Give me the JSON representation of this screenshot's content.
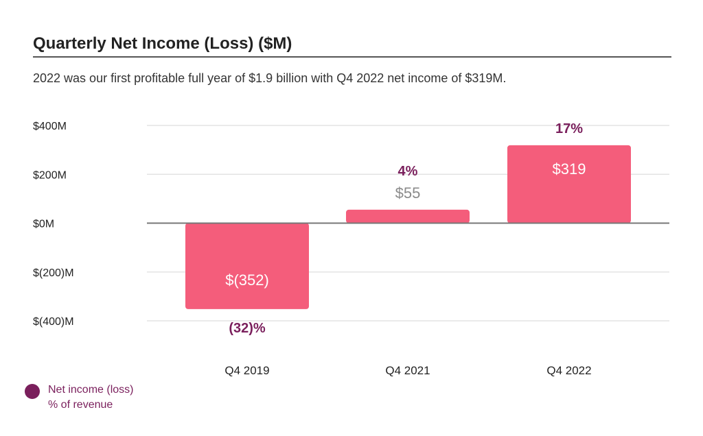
{
  "header": {
    "title": "Quarterly Net Income (Loss) ($M)",
    "subtitle": "2022 was our first profitable full year of $1.9 billion with Q4 2022 net income of $319M."
  },
  "legend": {
    "line1": "Net income (loss)",
    "line2": "% of revenue"
  },
  "colors": {
    "bar": "#f45d7b",
    "accent": "#7a1f5c",
    "label_light": "#ffffff",
    "label_gray": "#8a8a8a",
    "grid": "#e3e3e3",
    "zero_line": "#777777",
    "tick": "#222222"
  },
  "chart_data": {
    "type": "bar",
    "title": "Quarterly Net Income (Loss) ($M)",
    "categories": [
      "Q4 2019",
      "Q4 2021",
      "Q4 2022"
    ],
    "values": [
      -352,
      55,
      319
    ],
    "value_labels": [
      "$(352)",
      "$55",
      "$319"
    ],
    "percent_labels": [
      "(32)%",
      "4%",
      "17%"
    ],
    "ylim": [
      -400,
      400
    ],
    "yticks": [
      400,
      200,
      0,
      -200,
      -400
    ],
    "ytick_labels": [
      "$400M",
      "$200M",
      "$0M",
      "$(200)M",
      "$(400)M"
    ],
    "grid": true,
    "legend_position": "bottom-left",
    "series": [
      {
        "name": "Net income (loss)",
        "values": [
          -352,
          55,
          319
        ]
      },
      {
        "name": "% of revenue",
        "values": [
          -32,
          4,
          17
        ]
      }
    ]
  }
}
